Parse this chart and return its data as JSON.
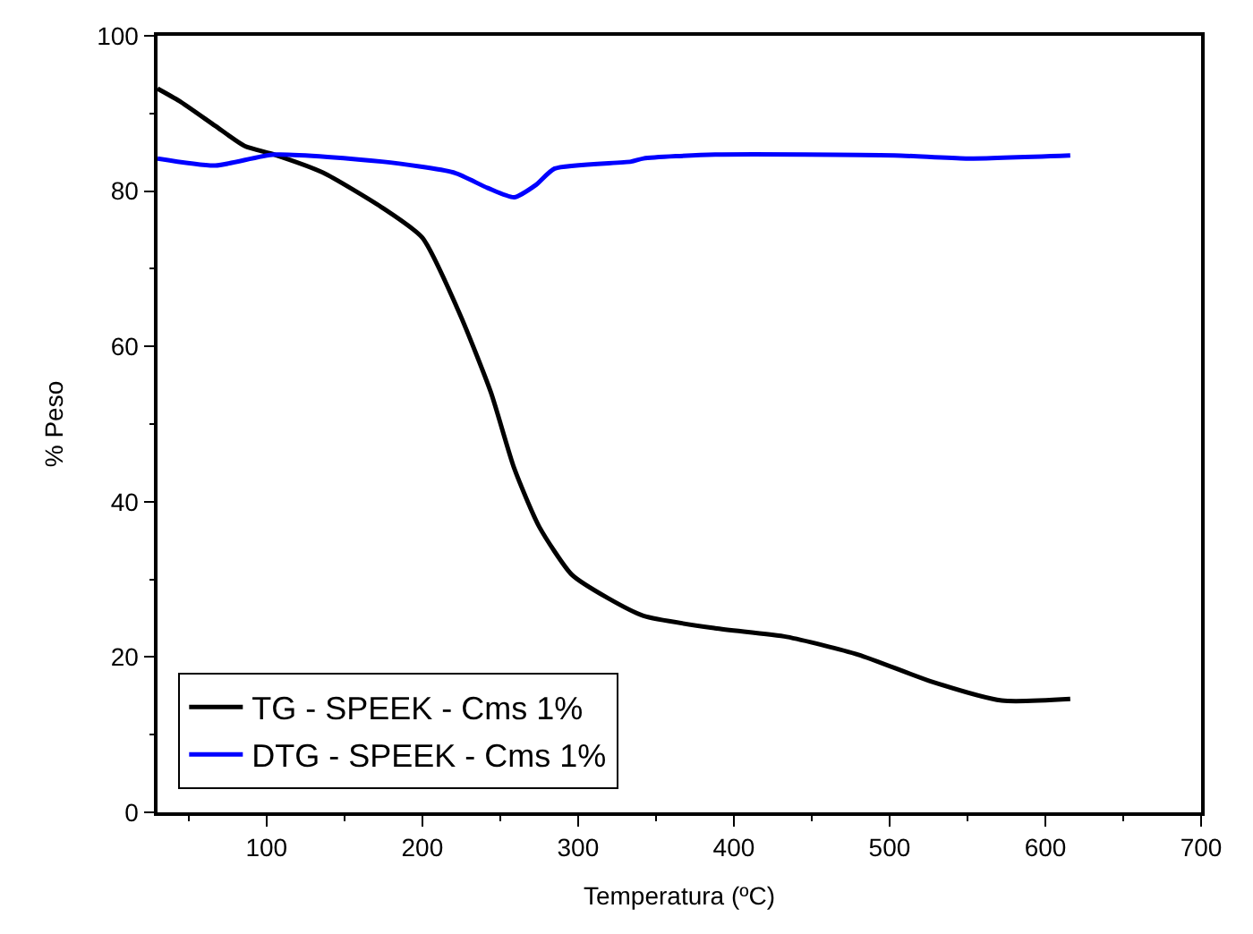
{
  "chart_data": {
    "type": "line",
    "xlabel": "Temperatura (ºC)",
    "ylabel": "% Peso",
    "xlim": [
      30,
      700
    ],
    "xticks": [
      100,
      200,
      300,
      400,
      500,
      600,
      700
    ],
    "ylim": [
      0,
      100
    ],
    "yticks": [
      0,
      20,
      40,
      60,
      80,
      100
    ],
    "legend": "bottom left",
    "line_style": "solid",
    "marker": "none",
    "series": [
      {
        "name": "TG - SPEEK - Cms 1%",
        "color": "#000000",
        "x": [
          30,
          44,
          67,
          86,
          105,
          136,
          174,
          200,
          224,
          244,
          259,
          275,
          296,
          319,
          342,
          388,
          434,
          480,
          526,
          572,
          616
        ],
        "values": [
          93.2,
          91.6,
          88.4,
          85.8,
          84.7,
          82.4,
          77.9,
          74.0,
          64.2,
          54.1,
          44.3,
          36.8,
          30.6,
          27.6,
          25.3,
          23.7,
          22.6,
          20.3,
          16.9,
          14.4,
          14.6
        ]
      },
      {
        "name": "DTG - SPEEK - Cms 1%",
        "color": "#0000ff",
        "x": [
          30,
          67,
          105,
          174,
          220,
          242,
          259,
          273,
          285,
          334,
          342,
          388,
          503,
          549,
          616
        ],
        "values": [
          84.2,
          83.3,
          84.7,
          83.8,
          82.4,
          80.4,
          79.2,
          80.8,
          82.9,
          83.8,
          84.2,
          84.7,
          84.6,
          84.2,
          84.6
        ]
      }
    ]
  }
}
